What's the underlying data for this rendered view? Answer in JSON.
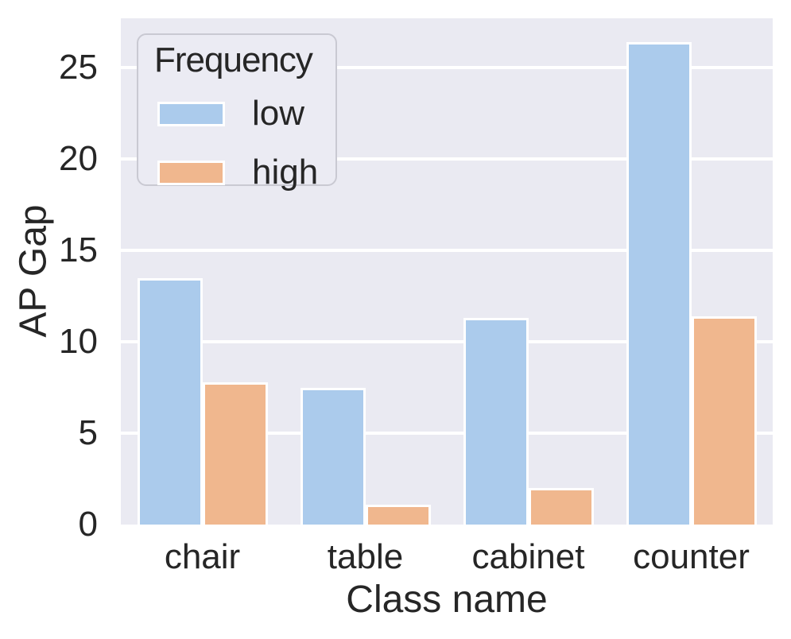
{
  "figure": {
    "background": "#ffffff",
    "axes_background": "#eaeaf2",
    "grid_color": "#ffffff",
    "text_color": "#262626",
    "bar_edge_color": "#ffffff"
  },
  "chart_data": {
    "type": "bar",
    "categories": [
      "chair",
      "table",
      "cabinet",
      "counter"
    ],
    "series": [
      {
        "name": "low",
        "color": "#abcbec",
        "values": [
          13.5,
          7.5,
          11.3,
          26.4
        ]
      },
      {
        "name": "high",
        "color": "#f0b78e",
        "values": [
          7.8,
          1.1,
          2.0,
          11.4
        ]
      }
    ],
    "title": "",
    "xlabel": "Class name",
    "ylabel": "AP Gap",
    "yticks": [
      0,
      5,
      10,
      15,
      20,
      25
    ],
    "ylim": [
      0,
      27.7
    ],
    "grid": true,
    "legend": {
      "title": "Frequency",
      "position": "upper-left",
      "entries": [
        "low",
        "high"
      ]
    }
  }
}
